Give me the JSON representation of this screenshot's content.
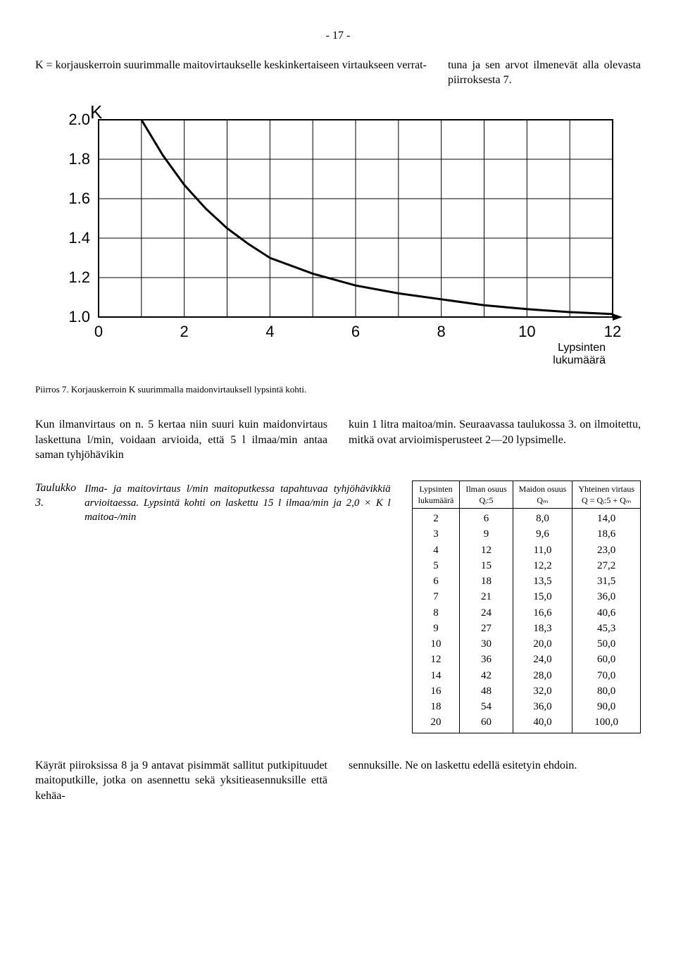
{
  "page_number": "- 17 -",
  "definition": {
    "left": "K = korjauskerroin suurimmalle maitovirtaukselle keskinkertaiseen virtaukseen verrat-",
    "right": "tuna ja sen arvot ilmenevät alla olevasta piirroksesta 7."
  },
  "chart": {
    "type": "line",
    "y_label": "K",
    "x_axis_label_1": "Lypsinten",
    "x_axis_label_2": "lukumäärä",
    "xlim": [
      0,
      12
    ],
    "ylim": [
      1.0,
      2.0
    ],
    "x_ticks": [
      "0",
      "2",
      "4",
      "6",
      "8",
      "10",
      "12"
    ],
    "y_ticks": [
      "2.0",
      "1.8",
      "1.6",
      "1.4",
      "1.2",
      "1.0"
    ],
    "grid_color": "#000000",
    "background_color": "#ffffff",
    "line_color": "#000000",
    "line_width": 3,
    "curve_points": [
      {
        "x": 1.0,
        "y": 2.0
      },
      {
        "x": 1.5,
        "y": 1.82
      },
      {
        "x": 2.0,
        "y": 1.67
      },
      {
        "x": 2.5,
        "y": 1.55
      },
      {
        "x": 3.0,
        "y": 1.45
      },
      {
        "x": 3.5,
        "y": 1.37
      },
      {
        "x": 4.0,
        "y": 1.3
      },
      {
        "x": 5.0,
        "y": 1.22
      },
      {
        "x": 6.0,
        "y": 1.16
      },
      {
        "x": 7.0,
        "y": 1.12
      },
      {
        "x": 8.0,
        "y": 1.09
      },
      {
        "x": 9.0,
        "y": 1.06
      },
      {
        "x": 10.0,
        "y": 1.04
      },
      {
        "x": 11.0,
        "y": 1.025
      },
      {
        "x": 12.0,
        "y": 1.015
      }
    ],
    "axis_fontsize": 22,
    "k_label_fontsize": 26
  },
  "chart_caption": "Piirros 7. Korjauskerroin K suurimmalla maidonvirtauksell lypsintä kohti.",
  "mid_paragraph": {
    "left": "Kun ilmanvirtaus on n. 5 kertaa niin suuri kuin maidonvirtaus laskettuna l/min, voidaan arvioida, että 5 l ilmaa/min antaa saman tyhjöhävikin",
    "right": "kuin 1 litra maitoa/min. Seuraavassa taulukossa 3. on ilmoitettu, mitkä ovat arvioimisperusteet 2—20 lypsimelle."
  },
  "table_section": {
    "label_prefix": "Taulukko 3.",
    "note": "Ilma- ja maitovirtaus l/min maitoputkessa tapahtuvaa tyhjöhävikkiä arvioitaessa. Lypsintä kohti on laskettu 15 l ilmaa/min ja 2,0 × K l maitoa-/min",
    "columns": [
      "Lypsinten lukumäärä",
      "Ilman osuus Qᵢ:5",
      "Maidon osuus Qₘ",
      "Yhteinen virtaus Q = Qᵢ:5 + Qₘ"
    ],
    "col_h1_a": "Lypsinten",
    "col_h1_b": "lukumäärä",
    "col_h2_a": "Ilman osuus",
    "col_h2_b": "Qᵢ:5",
    "col_h3_a": "Maidon osuus",
    "col_h3_b": "Qₘ",
    "col_h4_a": "Yhteinen virtaus",
    "col_h4_b": "Q = Qᵢ:5 + Qₘ",
    "rows": [
      [
        "2",
        "6",
        "8,0",
        "14,0"
      ],
      [
        "3",
        "9",
        "9,6",
        "18,6"
      ],
      [
        "4",
        "12",
        "11,0",
        "23,0"
      ],
      [
        "5",
        "15",
        "12,2",
        "27,2"
      ],
      [
        "6",
        "18",
        "13,5",
        "31,5"
      ],
      [
        "7",
        "21",
        "15,0",
        "36,0"
      ],
      [
        "8",
        "24",
        "16,6",
        "40,6"
      ],
      [
        "9",
        "27",
        "18,3",
        "45,3"
      ],
      [
        "10",
        "30",
        "20,0",
        "50,0"
      ],
      [
        "12",
        "36",
        "24,0",
        "60,0"
      ],
      [
        "14",
        "42",
        "28,0",
        "70,0"
      ],
      [
        "16",
        "48",
        "32,0",
        "80,0"
      ],
      [
        "18",
        "54",
        "36,0",
        "90,0"
      ],
      [
        "20",
        "60",
        "40,0",
        "100,0"
      ]
    ]
  },
  "bottom_paragraph": {
    "left": "Käyrät piiroksissa 8 ja 9 antavat pisimmät sallitut putkipituudet maitoputkille, jotka on asennettu sekä yksitieasennuksille että kehäa-",
    "right": "sennuksille. Ne on laskettu edellä esitetyin ehdoin."
  }
}
